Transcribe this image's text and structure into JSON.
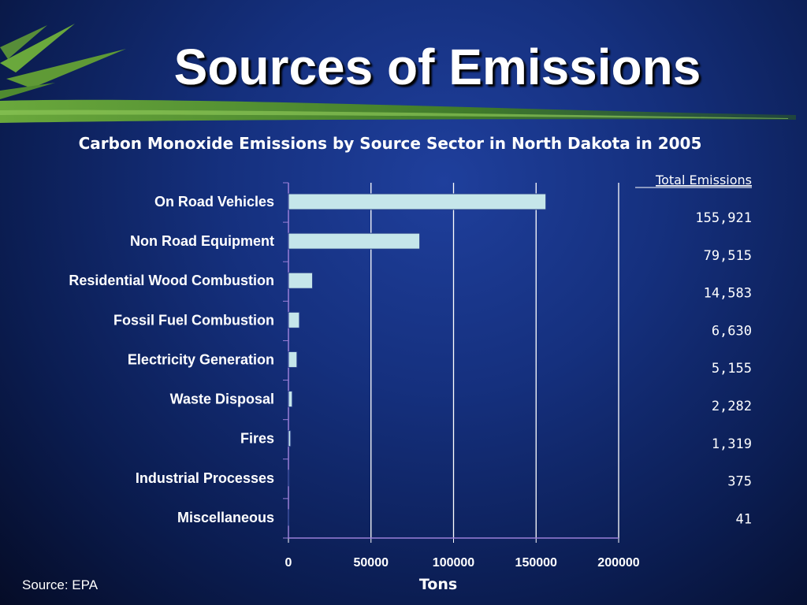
{
  "slide": {
    "title": "Sources of Emissions",
    "source": "Source: EPA"
  },
  "colors": {
    "background": "#15307e",
    "bar_fill": "#c5e6ea",
    "grid": "#ffffff",
    "text": "#ffffff",
    "accent_green": "#5f9a36"
  },
  "chart_data": {
    "type": "bar",
    "orientation": "horizontal",
    "title": "Carbon Monoxide Emissions by Source Sector in North Dakota in 2005",
    "xlabel": "Tons",
    "ylabel": "",
    "xlim": [
      0,
      200000
    ],
    "x_ticks": [
      "0",
      "50000",
      "100000",
      "150000",
      "200000"
    ],
    "grid": true,
    "legend": "none",
    "categories": [
      "On Road Vehicles",
      "Non Road Equipment",
      "Residential Wood Combustion",
      "Fossil Fuel Combustion",
      "Electricity Generation",
      "Waste Disposal",
      "Fires",
      "Industrial Processes",
      "Miscellaneous"
    ],
    "values": [
      155921,
      79515,
      14583,
      6630,
      5155,
      2282,
      1319,
      375,
      41
    ],
    "totals_header": "Total Emissions",
    "totals_labels": [
      "155,921",
      "79,515",
      "14,583",
      "6,630",
      "5,155",
      "2,282",
      "1,319",
      "375",
      "41"
    ]
  }
}
